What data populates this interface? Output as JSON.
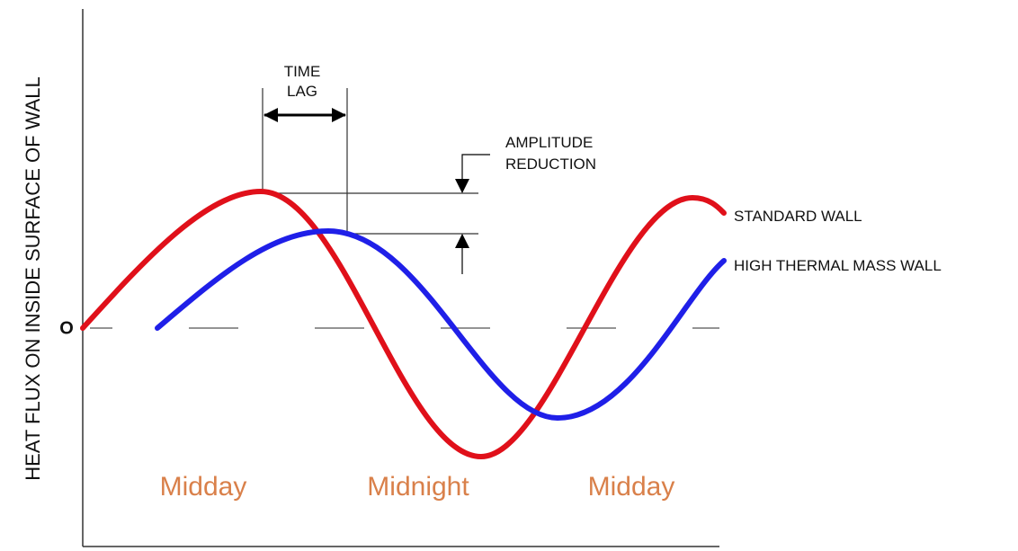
{
  "y_axis_label": "HEAT FLUX ON INSIDE SURFACE OF WALL",
  "zero_label": "O",
  "time_lag": [
    "TIME",
    "LAG"
  ],
  "amplitude_reduction": [
    "AMPLITUDE",
    "REDUCTION"
  ],
  "curves": [
    {
      "label": "STANDARD WALL",
      "color": "#e0101a"
    },
    {
      "label": "HIGH THERMAL MASS WALL",
      "color": "#1f1fe8"
    }
  ],
  "time_labels": [
    "Midday",
    "Midnight",
    "Midday"
  ]
}
